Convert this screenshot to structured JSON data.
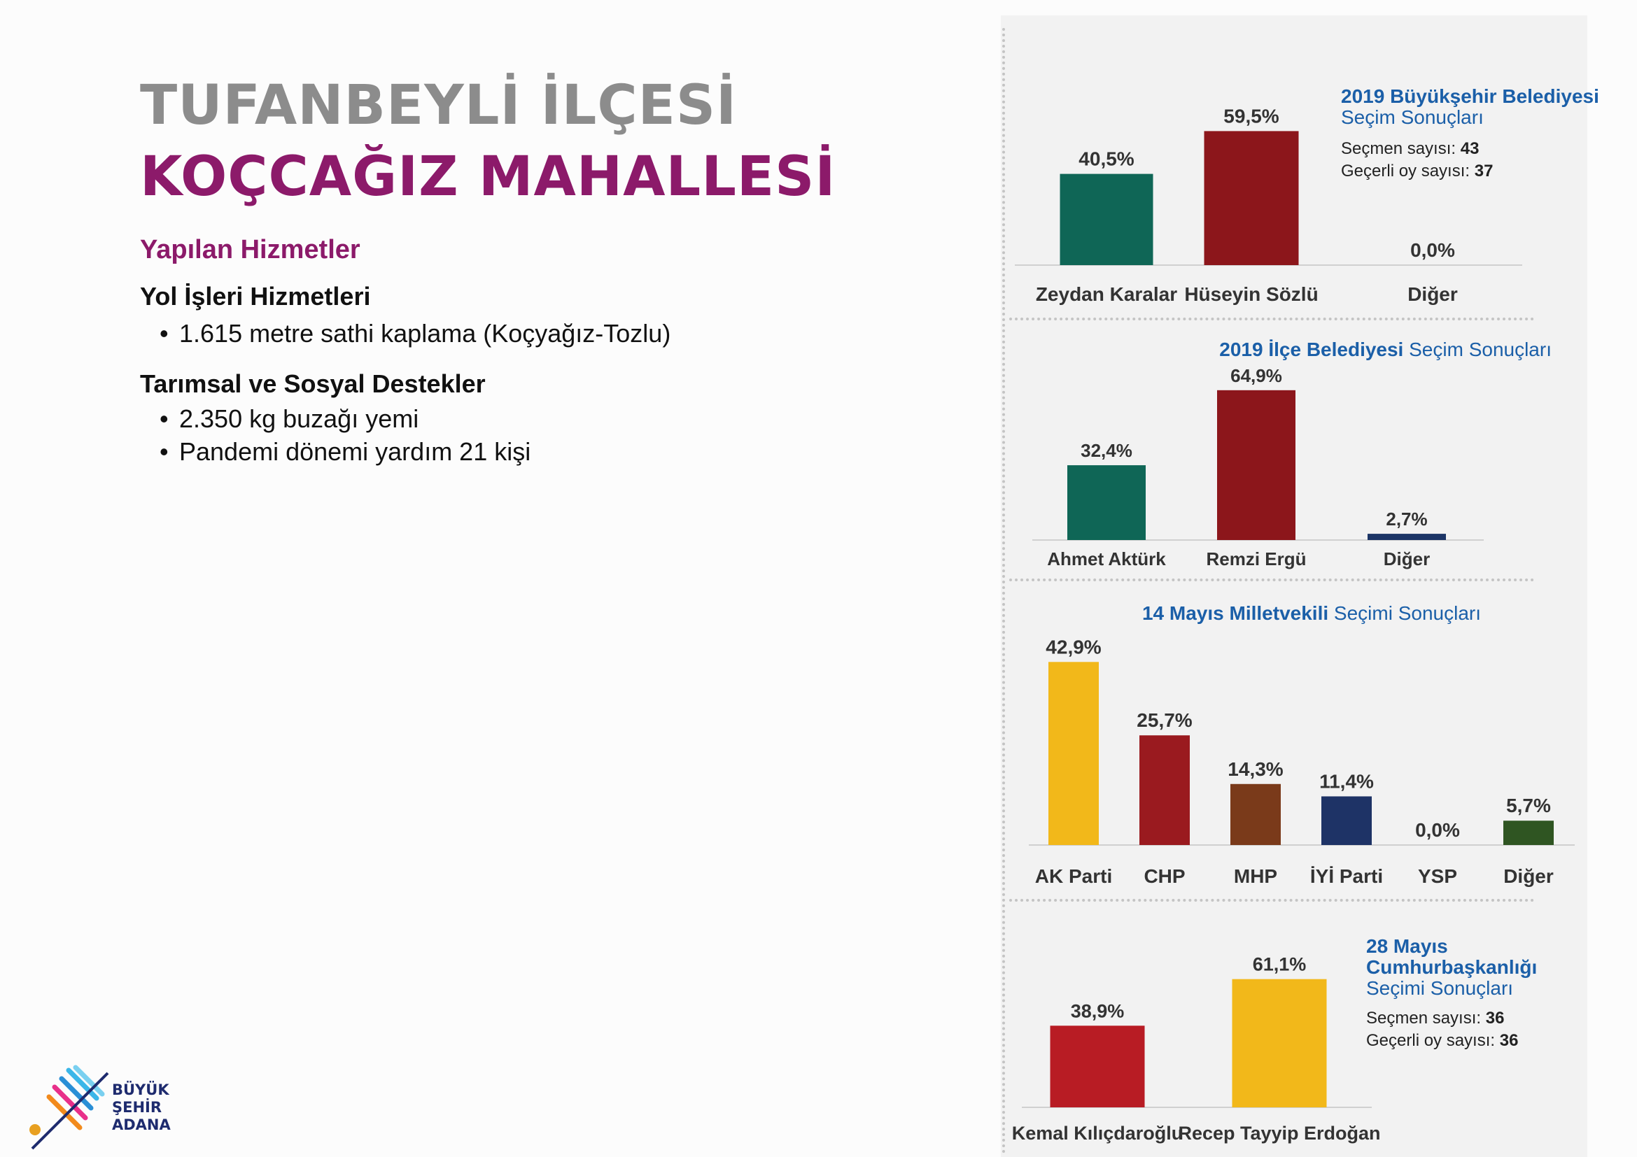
{
  "heading": {
    "district": "TUFANBEYLİ İLÇESİ",
    "neighborhood": "KOÇCAĞIZ MAHALLESİ"
  },
  "services": {
    "title": "Yapılan Hizmetler",
    "groups": [
      {
        "title": "Yol İşleri Hizmetleri",
        "items": [
          "1.615 metre sathi kaplama (Koçyağız-Tozlu)"
        ]
      },
      {
        "title": "Tarımsal ve Sosyal Destekler",
        "items": [
          "2.350 kg buzağı yemi",
          "Pandemi dönemi yardım 21 kişi"
        ]
      }
    ]
  },
  "logo": {
    "line1": "BÜYÜK",
    "line2": "ŞEHİR",
    "line3": "ADANA"
  },
  "chart_data": [
    {
      "type": "bar",
      "title_bold": "2019 Büyükşehir Belediyesi",
      "title_regular": "Seçim Sonuçları",
      "stats": [
        {
          "label": "Seçmen sayısı:",
          "value": "43"
        },
        {
          "label": "Geçerli oy sayısı:",
          "value": "37"
        }
      ],
      "categories": [
        "Zeydan Karalar",
        "Hüseyin Sözlü",
        "Diğer"
      ],
      "values": [
        40.5,
        59.5,
        0.0
      ],
      "value_labels": [
        "40,5%",
        "59,5%",
        "0,0%"
      ],
      "colors": [
        "#0f6656",
        "#8c161b",
        "#888888"
      ],
      "ylim": [
        0,
        100
      ]
    },
    {
      "type": "bar",
      "title_bold": "2019 İlçe Belediyesi",
      "title_regular": "Seçim Sonuçları",
      "categories": [
        "Ahmet Aktürk",
        "Remzi Ergü",
        "Diğer"
      ],
      "values": [
        32.4,
        64.9,
        2.7
      ],
      "value_labels": [
        "32,4%",
        "64,9%",
        "2,7%"
      ],
      "colors": [
        "#0f6656",
        "#8c161b",
        "#1c3566"
      ],
      "ylim": [
        0,
        100
      ]
    },
    {
      "type": "bar",
      "title_bold": "14 Mayıs Milletvekili",
      "title_regular": "Seçimi Sonuçları",
      "categories": [
        "AK Parti",
        "CHP",
        "MHP",
        "İYİ Parti",
        "YSP",
        "Diğer"
      ],
      "values": [
        42.9,
        25.7,
        14.3,
        11.4,
        0.0,
        5.7
      ],
      "value_labels": [
        "42,9%",
        "25,7%",
        "14,3%",
        "11,4%",
        "0,0%",
        "5,7%"
      ],
      "colors": [
        "#f2b81a",
        "#9a1a1f",
        "#7a3a1a",
        "#1e3366",
        "#888888",
        "#2f5522"
      ],
      "ylim": [
        0,
        100
      ]
    },
    {
      "type": "bar",
      "title_lines": [
        "28 Mayıs",
        "Cumhurbaşkanlığı"
      ],
      "title_regular": "Seçimi Sonuçları",
      "stats": [
        {
          "label": "Seçmen sayısı:",
          "value": "36"
        },
        {
          "label": "Geçerli oy sayısı:",
          "value": "36"
        }
      ],
      "categories": [
        "Kemal Kılıçdaroğlu",
        "Recep Tayyip Erdoğan"
      ],
      "values": [
        38.9,
        61.1
      ],
      "value_labels": [
        "38,9%",
        "61,1%"
      ],
      "colors": [
        "#b81c24",
        "#f2b81a"
      ],
      "ylim": [
        0,
        100
      ]
    }
  ]
}
